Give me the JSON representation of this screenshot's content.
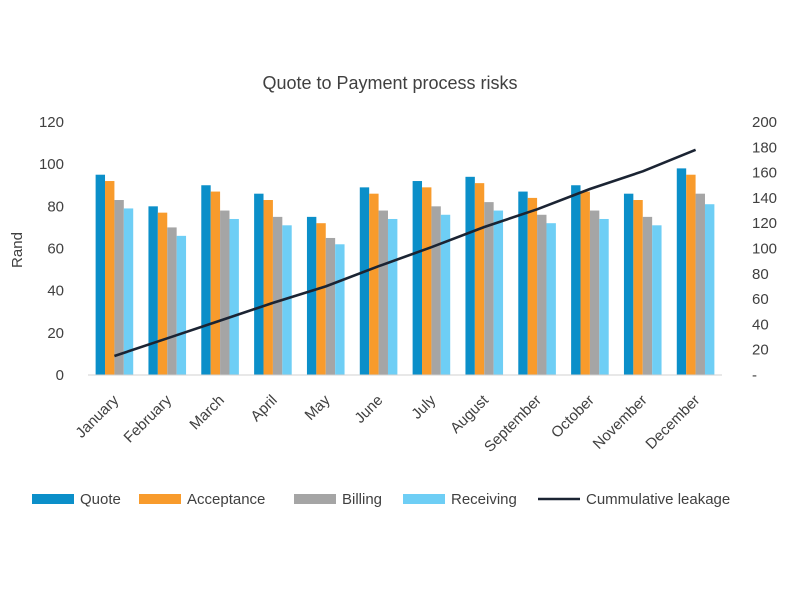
{
  "chart_data": {
    "type": "bar",
    "title": "Quote to Payment process risks",
    "ylabel": "Rand",
    "xlabel": "",
    "ylim": [
      0,
      120
    ],
    "y_ticks": [
      "0",
      "20",
      "40",
      "60",
      "80",
      "100",
      "120"
    ],
    "y2lim": [
      0,
      200
    ],
    "y2_ticks": [
      "-",
      "20",
      "40",
      "60",
      "80",
      "100",
      "120",
      "140",
      "160",
      "180",
      "200"
    ],
    "categories": [
      "January",
      "February",
      "March",
      "April",
      "May",
      "June",
      "July",
      "August",
      "September",
      "October",
      "November",
      "December"
    ],
    "series": [
      {
        "name": "Quote",
        "type": "bar",
        "axis": "left",
        "color": "#0B8FC9",
        "values": [
          95,
          80,
          90,
          86,
          75,
          89,
          92,
          94,
          87,
          90,
          86,
          98
        ]
      },
      {
        "name": "Acceptance",
        "type": "bar",
        "axis": "left",
        "color": "#F89B2C",
        "values": [
          92,
          77,
          87,
          83,
          72,
          86,
          89,
          91,
          84,
          87,
          83,
          95
        ]
      },
      {
        "name": "Billing",
        "type": "bar",
        "axis": "left",
        "color": "#A5A5A5",
        "values": [
          83,
          70,
          78,
          75,
          65,
          78,
          80,
          82,
          76,
          78,
          75,
          86
        ]
      },
      {
        "name": "Receiving",
        "type": "bar",
        "axis": "left",
        "color": "#6ECEF5",
        "values": [
          79,
          66,
          74,
          71,
          62,
          74,
          76,
          78,
          72,
          74,
          71,
          81
        ]
      },
      {
        "name": "Cummulative leakage",
        "type": "line",
        "axis": "right",
        "color": "#1B2433",
        "values": [
          15,
          29,
          43,
          57,
          70,
          86,
          101,
          117,
          131,
          147,
          161,
          178
        ]
      }
    ],
    "legend_position": "bottom",
    "grid": false
  }
}
